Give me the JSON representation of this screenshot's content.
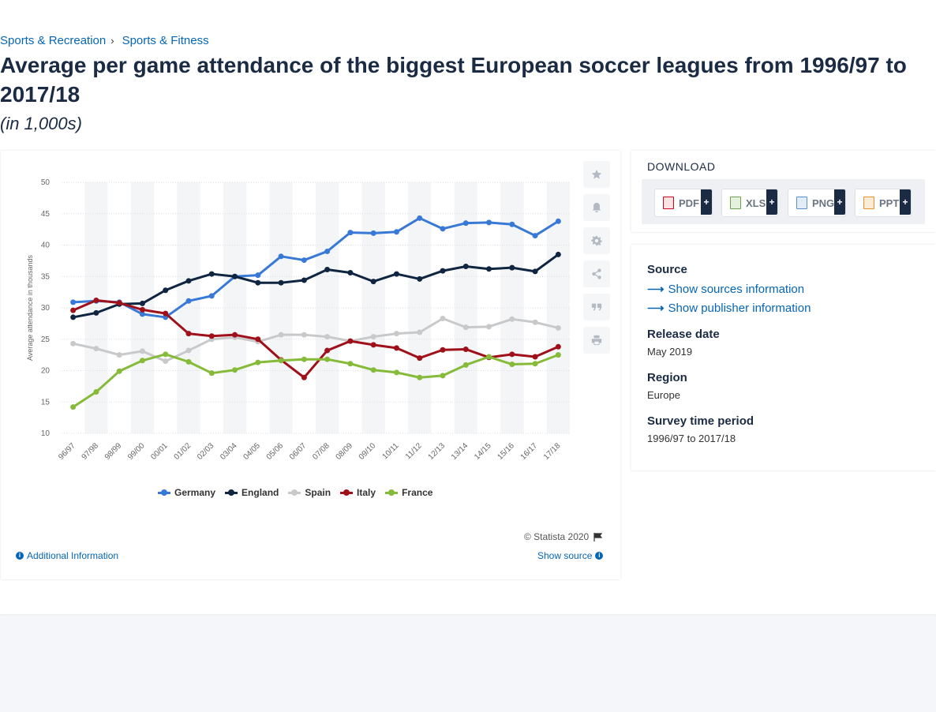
{
  "breadcrumb": {
    "item1": "Sports & Recreation",
    "item2": "Sports & Fitness",
    "separator": "›"
  },
  "page": {
    "title": "Average per game attendance of the biggest European soccer leagues from 1996/97 to 2017/18",
    "subtitle": "(in 1,000s)"
  },
  "toolbar": {
    "icons": [
      "star-icon",
      "bell-icon",
      "gear-icon",
      "share-icon",
      "quote-icon",
      "print-icon"
    ]
  },
  "chart_data": {
    "type": "line",
    "title": "",
    "xlabel": "",
    "ylabel": "Average attendance in thousands",
    "ylim": [
      10,
      50
    ],
    "yticks": [
      10,
      15,
      20,
      25,
      30,
      35,
      40,
      45,
      50
    ],
    "grid": true,
    "legend_position": "bottom",
    "categories": [
      "96/97",
      "97/98",
      "98/99",
      "99/00",
      "00/01",
      "01/02",
      "02/03",
      "03/04",
      "04/05",
      "05/06",
      "06/07",
      "07/08",
      "08/09",
      "09/10",
      "10/11",
      "11/12",
      "12/13",
      "13/14",
      "14/15",
      "15/16",
      "16/17",
      "17/18"
    ],
    "series": [
      {
        "name": "Germany",
        "color": "#3878d6",
        "values": [
          30.9,
          31.1,
          30.9,
          29.0,
          28.5,
          31.1,
          31.9,
          35.0,
          35.2,
          38.2,
          37.6,
          39.0,
          42.0,
          41.9,
          42.1,
          44.3,
          42.6,
          43.5,
          43.6,
          43.3,
          41.5,
          43.8
        ]
      },
      {
        "name": "England",
        "color": "#0f2540",
        "values": [
          28.5,
          29.2,
          30.6,
          30.7,
          32.8,
          34.3,
          35.4,
          35.0,
          34.0,
          34.0,
          34.4,
          36.1,
          35.6,
          34.2,
          35.4,
          34.6,
          35.9,
          36.6,
          36.2,
          36.4,
          35.8,
          38.5
        ]
      },
      {
        "name": "Spain",
        "color": "#c8c9cb",
        "values": [
          24.3,
          23.5,
          22.5,
          23.1,
          21.5,
          23.2,
          25.0,
          25.3,
          24.6,
          25.7,
          25.7,
          25.4,
          24.7,
          25.4,
          25.9,
          26.1,
          28.3,
          26.9,
          27.0,
          28.2,
          27.7,
          26.8
        ]
      },
      {
        "name": "Italy",
        "color": "#a0101a",
        "values": [
          29.6,
          31.2,
          30.8,
          29.7,
          29.1,
          25.9,
          25.5,
          25.7,
          25.0,
          21.7,
          18.9,
          23.2,
          24.7,
          24.1,
          23.6,
          22.0,
          23.3,
          23.4,
          22.1,
          22.6,
          22.2,
          23.8
        ]
      },
      {
        "name": "France",
        "color": "#86bb3a",
        "values": [
          14.2,
          16.6,
          19.9,
          21.6,
          22.6,
          21.4,
          19.6,
          20.1,
          21.3,
          21.6,
          21.8,
          21.8,
          21.1,
          20.1,
          19.7,
          18.9,
          19.2,
          20.9,
          22.2,
          21.0,
          21.1,
          22.5
        ]
      }
    ]
  },
  "footer": {
    "copyright": "© Statista 2020",
    "additional_info": "Additional Information",
    "show_source": "Show source",
    "info_glyph": "i"
  },
  "download": {
    "title": "DOWNLOAD",
    "buttons": [
      {
        "label": "PDF",
        "color": "#d0021b"
      },
      {
        "label": "XLS",
        "color": "#6aa84f"
      },
      {
        "label": "PNG",
        "color": "#5b8ed1"
      },
      {
        "label": "PPT",
        "color": "#e8912d"
      }
    ],
    "plus": "+"
  },
  "info": {
    "source_label": "Source",
    "show_sources": "Show sources information",
    "show_publisher": "Show publisher information",
    "release_label": "Release date",
    "release_value": "May 2019",
    "region_label": "Region",
    "region_value": "Europe",
    "period_label": "Survey time period",
    "period_value": "1996/97 to 2017/18"
  }
}
